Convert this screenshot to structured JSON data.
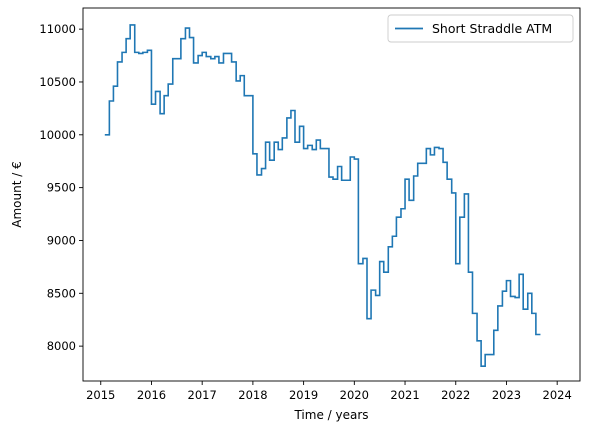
{
  "chart_data": {
    "type": "line",
    "style": "step",
    "xlabel": "Time / years",
    "ylabel": "Amount / €",
    "xlim": [
      2014.65,
      2024.45
    ],
    "ylim": [
      7670,
      11200
    ],
    "xticks": [
      {
        "value": 2015,
        "label": "2015"
      },
      {
        "value": 2016,
        "label": "2016"
      },
      {
        "value": 2017,
        "label": "2017"
      },
      {
        "value": 2018,
        "label": "2018"
      },
      {
        "value": 2019,
        "label": "2019"
      },
      {
        "value": 2020,
        "label": "2020"
      },
      {
        "value": 2021,
        "label": "2021"
      },
      {
        "value": 2022,
        "label": "2022"
      },
      {
        "value": 2023,
        "label": "2023"
      },
      {
        "value": 2024,
        "label": "2024"
      }
    ],
    "yticks": [
      {
        "value": 8000,
        "label": "8000"
      },
      {
        "value": 8500,
        "label": "8500"
      },
      {
        "value": 9000,
        "label": "9000"
      },
      {
        "value": 9500,
        "label": "9500"
      },
      {
        "value": 10000,
        "label": "10000"
      },
      {
        "value": 10500,
        "label": "10500"
      },
      {
        "value": 11000,
        "label": "11000"
      }
    ],
    "legend_position": "top-right",
    "grid": false,
    "series": [
      {
        "name": "Short Straddle ATM",
        "color": "#1f77b4",
        "points": [
          [
            2015.08,
            10000
          ],
          [
            2015.17,
            10320
          ],
          [
            2015.25,
            10460
          ],
          [
            2015.33,
            10690
          ],
          [
            2015.42,
            10780
          ],
          [
            2015.5,
            10910
          ],
          [
            2015.58,
            11040
          ],
          [
            2015.67,
            10780
          ],
          [
            2015.75,
            10770
          ],
          [
            2015.83,
            10780
          ],
          [
            2015.92,
            10800
          ],
          [
            2016.0,
            10290
          ],
          [
            2016.08,
            10410
          ],
          [
            2016.17,
            10200
          ],
          [
            2016.25,
            10370
          ],
          [
            2016.33,
            10480
          ],
          [
            2016.42,
            10720
          ],
          [
            2016.5,
            10720
          ],
          [
            2016.58,
            10910
          ],
          [
            2016.67,
            11010
          ],
          [
            2016.75,
            10920
          ],
          [
            2016.83,
            10680
          ],
          [
            2016.92,
            10750
          ],
          [
            2017.0,
            10780
          ],
          [
            2017.08,
            10740
          ],
          [
            2017.17,
            10720
          ],
          [
            2017.25,
            10740
          ],
          [
            2017.33,
            10680
          ],
          [
            2017.42,
            10770
          ],
          [
            2017.5,
            10770
          ],
          [
            2017.58,
            10690
          ],
          [
            2017.67,
            10510
          ],
          [
            2017.75,
            10560
          ],
          [
            2017.83,
            10370
          ],
          [
            2017.92,
            10370
          ],
          [
            2018.0,
            9820
          ],
          [
            2018.08,
            9620
          ],
          [
            2018.17,
            9680
          ],
          [
            2018.25,
            9930
          ],
          [
            2018.33,
            9760
          ],
          [
            2018.42,
            9930
          ],
          [
            2018.5,
            9860
          ],
          [
            2018.58,
            9970
          ],
          [
            2018.67,
            10160
          ],
          [
            2018.75,
            10230
          ],
          [
            2018.83,
            9930
          ],
          [
            2018.92,
            10080
          ],
          [
            2019.0,
            9870
          ],
          [
            2019.08,
            9900
          ],
          [
            2019.17,
            9860
          ],
          [
            2019.25,
            9950
          ],
          [
            2019.33,
            9870
          ],
          [
            2019.42,
            9870
          ],
          [
            2019.5,
            9600
          ],
          [
            2019.58,
            9580
          ],
          [
            2019.67,
            9700
          ],
          [
            2019.75,
            9570
          ],
          [
            2019.83,
            9570
          ],
          [
            2019.92,
            9790
          ],
          [
            2020.0,
            9770
          ],
          [
            2020.08,
            8780
          ],
          [
            2020.17,
            8830
          ],
          [
            2020.25,
            8260
          ],
          [
            2020.33,
            8530
          ],
          [
            2020.42,
            8480
          ],
          [
            2020.5,
            8800
          ],
          [
            2020.58,
            8700
          ],
          [
            2020.67,
            8940
          ],
          [
            2020.75,
            9040
          ],
          [
            2020.83,
            9220
          ],
          [
            2020.92,
            9300
          ],
          [
            2021.0,
            9580
          ],
          [
            2021.08,
            9380
          ],
          [
            2021.17,
            9610
          ],
          [
            2021.25,
            9730
          ],
          [
            2021.33,
            9730
          ],
          [
            2021.42,
            9870
          ],
          [
            2021.5,
            9810
          ],
          [
            2021.58,
            9880
          ],
          [
            2021.67,
            9870
          ],
          [
            2021.75,
            9740
          ],
          [
            2021.83,
            9580
          ],
          [
            2021.92,
            9450
          ],
          [
            2022.0,
            8780
          ],
          [
            2022.08,
            9220
          ],
          [
            2022.17,
            9440
          ],
          [
            2022.25,
            8700
          ],
          [
            2022.33,
            8310
          ],
          [
            2022.42,
            8050
          ],
          [
            2022.5,
            7810
          ],
          [
            2022.58,
            7920
          ],
          [
            2022.67,
            7920
          ],
          [
            2022.75,
            8150
          ],
          [
            2022.83,
            8380
          ],
          [
            2022.92,
            8520
          ],
          [
            2023.0,
            8620
          ],
          [
            2023.08,
            8470
          ],
          [
            2023.17,
            8460
          ],
          [
            2023.25,
            8680
          ],
          [
            2023.33,
            8350
          ],
          [
            2023.42,
            8500
          ],
          [
            2023.5,
            8310
          ],
          [
            2023.58,
            8110
          ],
          [
            2023.67,
            8110
          ]
        ]
      }
    ]
  }
}
